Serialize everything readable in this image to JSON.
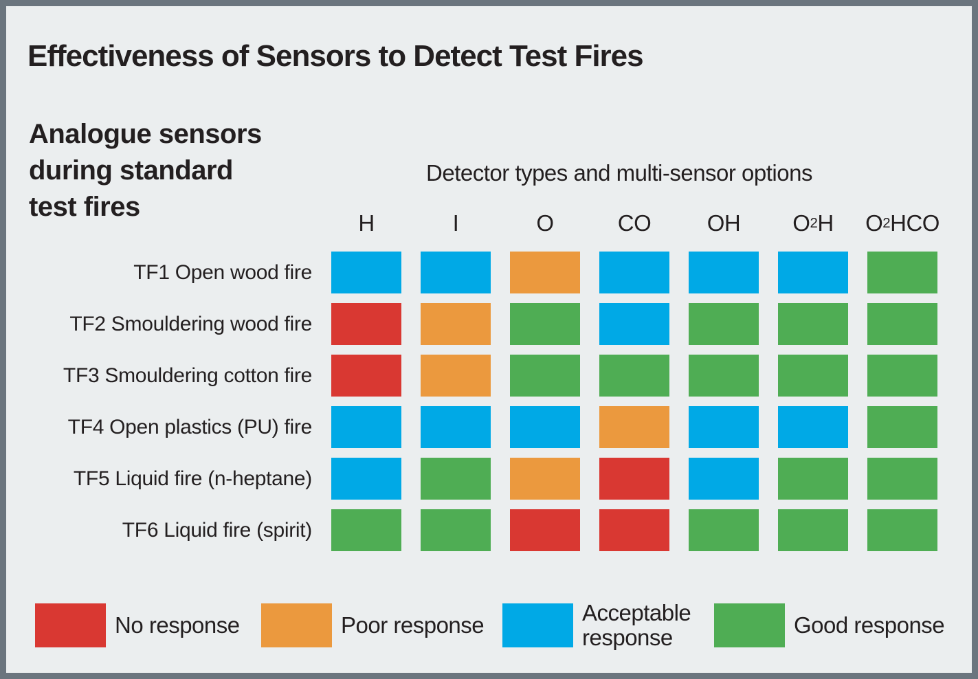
{
  "page": {
    "title": "Effectiveness of Sensors to Detect Test Fires",
    "left_heading": "Analogue sensors\nduring standard\ntest fires",
    "top_heading": "Detector types and multi-sensor options"
  },
  "colors": {
    "bg": "#EBEEEF",
    "frame": "#6B757E",
    "text": "#231F20",
    "no": "#D93832",
    "poor": "#EB993E",
    "acceptable": "#00A9E6",
    "good": "#4FAD54"
  },
  "chart_data": {
    "type": "heatmap",
    "title": "Effectiveness of Sensors to Detect Test Fires",
    "row_group_label": "Analogue sensors during standard test fires",
    "col_group_label": "Detector types and multi-sensor options",
    "columns": [
      {
        "text": "H",
        "pre": "H",
        "sup": "",
        "post": ""
      },
      {
        "text": "I",
        "pre": "I",
        "sup": "",
        "post": ""
      },
      {
        "text": "O",
        "pre": "O",
        "sup": "",
        "post": ""
      },
      {
        "text": "CO",
        "pre": "CO",
        "sup": "",
        "post": ""
      },
      {
        "text": "OH",
        "pre": "OH",
        "sup": "",
        "post": ""
      },
      {
        "text": "O2H",
        "pre": "O",
        "sup": "2",
        "post": "H"
      },
      {
        "text": "O2HCO",
        "pre": "O",
        "sup": "2",
        "post": "HCO"
      }
    ],
    "rows": [
      "TF1 Open wood fire",
      "TF2 Smouldering wood fire",
      "TF3 Smouldering cotton fire",
      "TF4 Open plastics (PU) fire",
      "TF5 Liquid fire (n-heptane)",
      "TF6 Liquid fire (spirit)"
    ],
    "cells": [
      [
        "acceptable",
        "acceptable",
        "poor",
        "acceptable",
        "acceptable",
        "acceptable",
        "good"
      ],
      [
        "no",
        "poor",
        "good",
        "acceptable",
        "good",
        "good",
        "good"
      ],
      [
        "no",
        "poor",
        "good",
        "good",
        "good",
        "good",
        "good"
      ],
      [
        "acceptable",
        "acceptable",
        "acceptable",
        "poor",
        "acceptable",
        "acceptable",
        "good"
      ],
      [
        "acceptable",
        "good",
        "poor",
        "no",
        "acceptable",
        "good",
        "good"
      ],
      [
        "good",
        "good",
        "no",
        "no",
        "good",
        "good",
        "good"
      ]
    ],
    "rating_labels": {
      "no": "No response",
      "poor": "Poor response",
      "acceptable": "Acceptable response",
      "good": "Good response"
    },
    "legend": [
      {
        "key": "no",
        "label": "No response"
      },
      {
        "key": "poor",
        "label": "Poor response"
      },
      {
        "key": "acceptable",
        "label": "Acceptable\nresponse"
      },
      {
        "key": "good",
        "label": "Good response"
      }
    ],
    "legend_position": "bottom"
  }
}
